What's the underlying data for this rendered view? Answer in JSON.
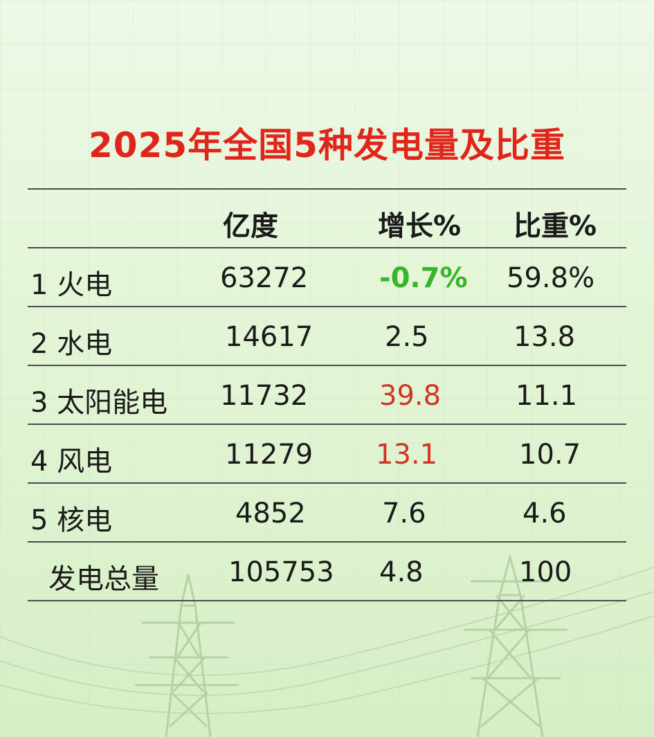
{
  "title": "2025年全国5种发电量及比重",
  "headers": {
    "amount": "亿度",
    "growth": "增长%",
    "share": "比重%"
  },
  "rows": [
    {
      "name": "1 火电",
      "amount": "63272",
      "growth": "-0.7%",
      "share": "59.8%"
    },
    {
      "name": "2 水电",
      "amount": "14617",
      "growth": "2.5",
      "share": "13.8"
    },
    {
      "name": "3 太阳能电",
      "amount": "11732",
      "growth": "39.8",
      "share": "11.1"
    },
    {
      "name": "4 风电",
      "amount": "11279",
      "growth": "13.1",
      "share": "10.7"
    },
    {
      "name": "5 核电",
      "amount": "4852",
      "growth": "7.6",
      "share": "4.6"
    },
    {
      "name": "发电总量",
      "amount": "105753",
      "growth": "4.8",
      "share": "100"
    }
  ],
  "colors": {
    "title": "#e0261c",
    "decrease": "#3bb32a",
    "highlight": "#d23426",
    "text": "#1a1a1a"
  }
}
